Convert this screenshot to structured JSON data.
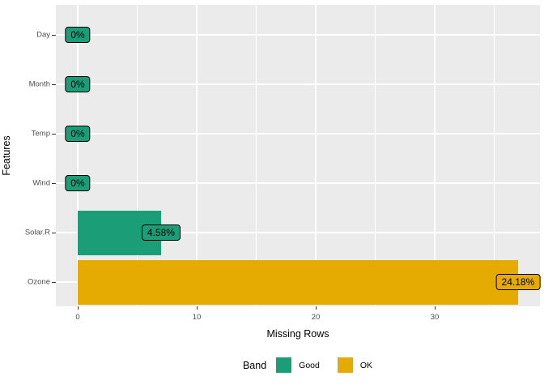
{
  "chart_data": {
    "type": "bar",
    "orientation": "horizontal",
    "title": "",
    "xlabel": "Missing Rows",
    "ylabel": "Features",
    "categories": [
      "Day",
      "Month",
      "Temp",
      "Wind",
      "Solar.R",
      "Ozone"
    ],
    "series": [
      {
        "name": "missing_rows",
        "values": [
          0,
          0,
          0,
          0,
          7,
          37
        ]
      }
    ],
    "value_labels": [
      "0%",
      "0%",
      "0%",
      "0%",
      "4.58%",
      "24.18%"
    ],
    "bands": [
      "Good",
      "Good",
      "Good",
      "Good",
      "Good",
      "OK"
    ],
    "x_ticks": [
      0,
      10,
      20,
      30
    ],
    "x_tick_labels": [
      "0",
      "10",
      "20",
      "30"
    ],
    "x_minor_ticks": [
      5,
      15,
      25,
      35
    ],
    "xlim": [
      -1.85,
      38.85
    ],
    "grid": "on",
    "legend": {
      "title": "Band",
      "position": "bottom",
      "entries": [
        {
          "label": "Good",
          "color": "#1B9E77"
        },
        {
          "label": "OK",
          "color": "#E6AB02"
        }
      ]
    },
    "colors": {
      "panel_background": "#EBEBEB",
      "gridline": "#FFFFFF",
      "band_good": "#1B9E77",
      "band_ok": "#E6AB02",
      "tick_text": "#4D4D4D",
      "axis_title_text": "#000000",
      "value_label_border": "#000000",
      "figure_background": "#FFFFFF"
    }
  }
}
